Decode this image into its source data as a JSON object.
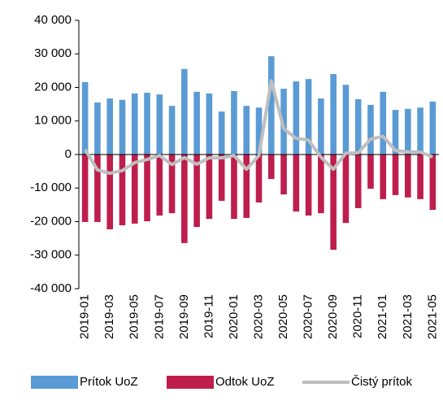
{
  "chart_data": {
    "type": "bar",
    "categories": [
      "2019-01",
      null,
      "2019-03",
      null,
      "2019-05",
      null,
      "2019-07",
      null,
      "2019-09",
      null,
      "2019-11",
      null,
      "2020-01",
      null,
      "2020-03",
      null,
      "2020-05",
      null,
      "2020-07",
      null,
      "2020-09",
      null,
      "2020-11",
      null,
      "2021-01",
      null,
      "2021-03",
      null,
      "2021-05"
    ],
    "series": [
      {
        "name": "Prítok UoZ",
        "color": "#5b9bd5",
        "type": "bar",
        "values": [
          21600,
          15500,
          16700,
          16300,
          18200,
          18400,
          17900,
          14500,
          25500,
          18700,
          18200,
          12800,
          18900,
          14500,
          14000,
          29300,
          19600,
          21800,
          22500,
          16700,
          24000,
          20800,
          16500,
          14800,
          18700,
          13300,
          13600,
          14000,
          15800
        ]
      },
      {
        "name": "Odtok UoZ",
        "color": "#be1e4d",
        "type": "bar",
        "values": [
          -20100,
          -20100,
          -22300,
          -21100,
          -20600,
          -19900,
          -18200,
          -17500,
          -26400,
          -21600,
          -19200,
          -13800,
          -19200,
          -18900,
          -14300,
          -7300,
          -11900,
          -17000,
          -18200,
          -17500,
          -28400,
          -20400,
          -16000,
          -10200,
          -13300,
          -12100,
          -12800,
          -13300,
          -16500
        ]
      },
      {
        "name": "Čistý prítok",
        "color": "#bfbfbf",
        "type": "line",
        "values": [
          1500,
          -4600,
          -5600,
          -4800,
          -2400,
          -1500,
          -300,
          -3000,
          -900,
          -2900,
          -1000,
          -1000,
          -300,
          -4400,
          -300,
          22000,
          7700,
          4800,
          4300,
          -800,
          -4400,
          400,
          500,
          4600,
          5400,
          1200,
          800,
          700,
          -700
        ]
      }
    ],
    "ylim": [
      -40000,
      40000
    ],
    "yticks": [
      {
        "value": -40000,
        "label": "-40 000"
      },
      {
        "value": -30000,
        "label": "-30 000"
      },
      {
        "value": -20000,
        "label": "-20 000"
      },
      {
        "value": -10000,
        "label": "-10 000"
      },
      0,
      {
        "value": 10000,
        "label": "10 000"
      },
      {
        "value": 20000,
        "label": "20 000"
      },
      {
        "value": 30000,
        "label": "30 000"
      },
      {
        "value": 40000,
        "label": "40 000"
      }
    ],
    "legend": "bottom"
  }
}
